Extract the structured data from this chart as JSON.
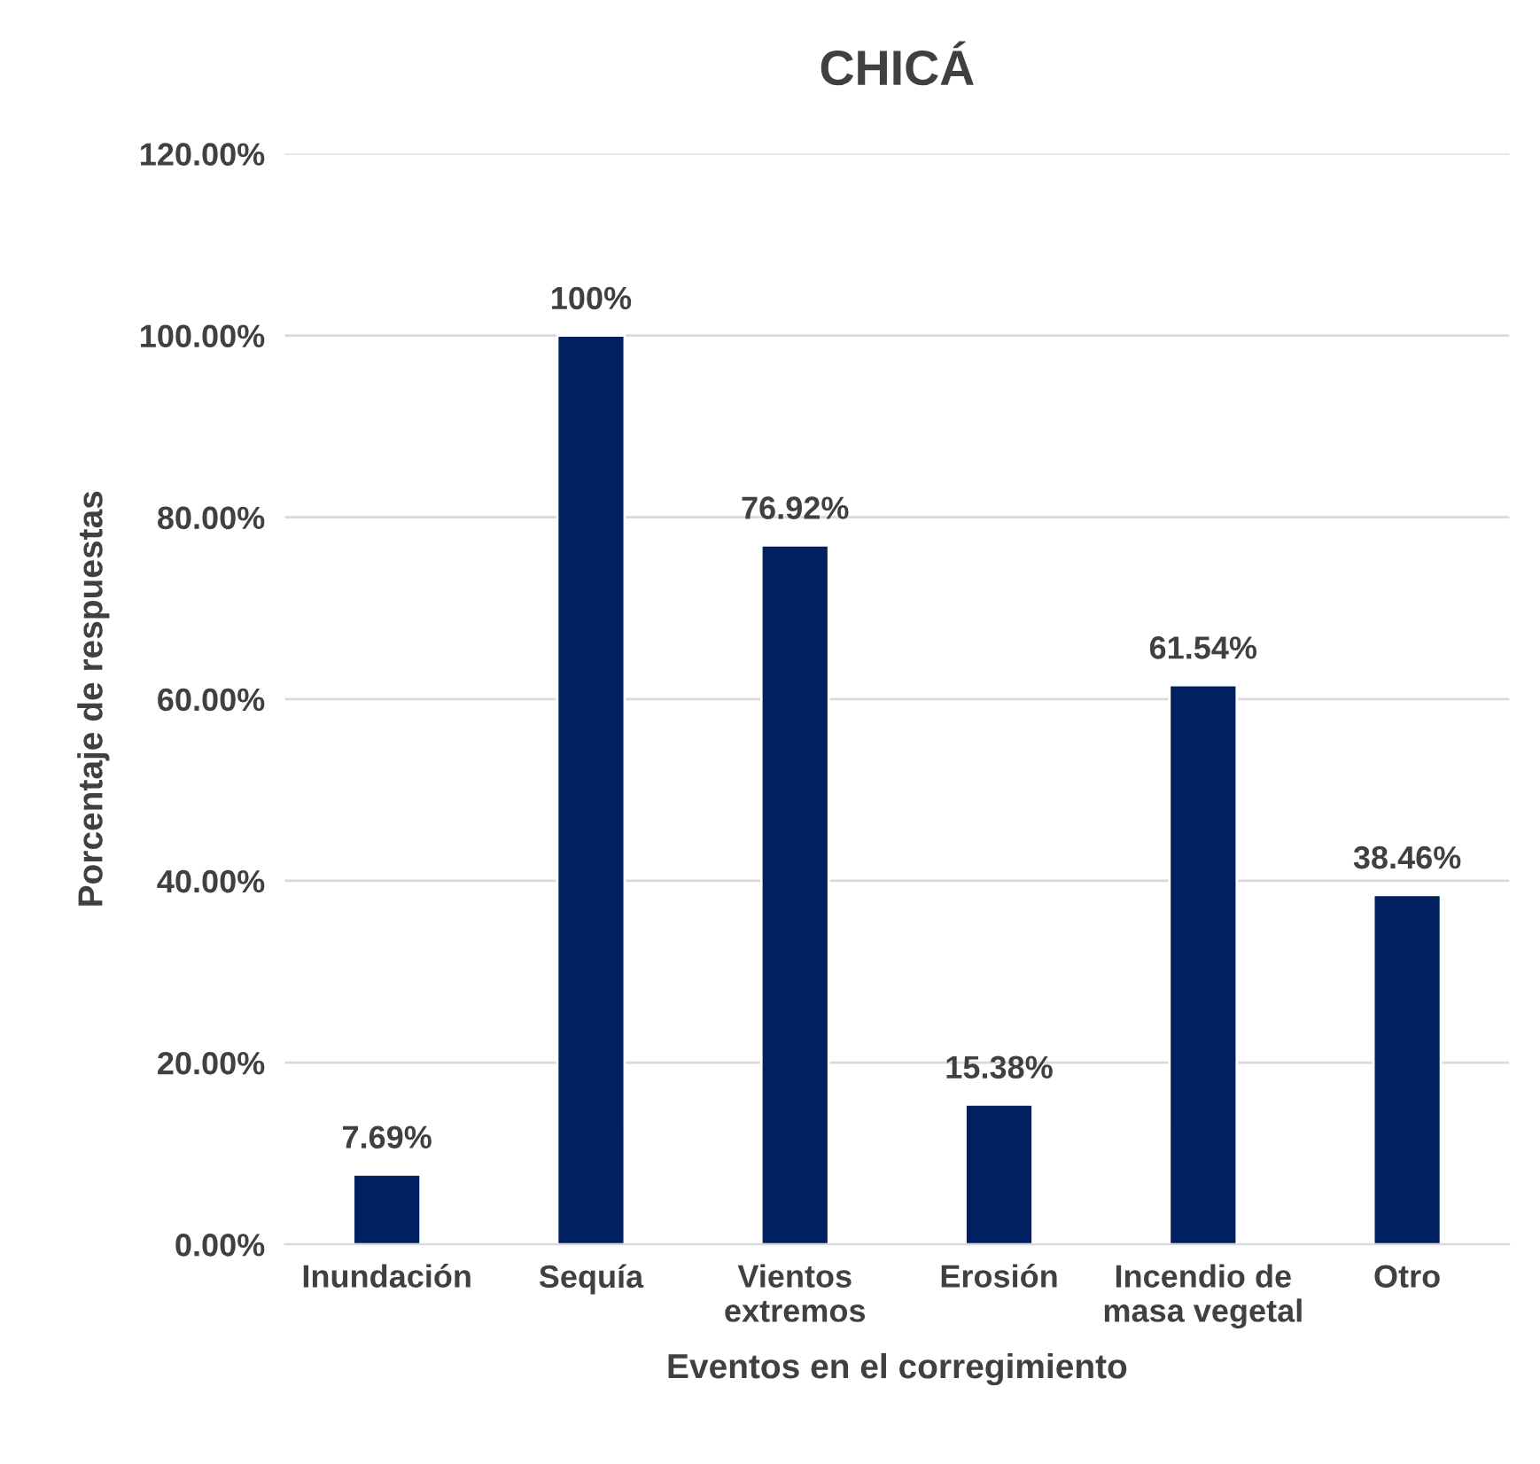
{
  "chart_data": {
    "type": "bar",
    "title": "CHICÁ",
    "xlabel": "Eventos en el corregimiento",
    "ylabel": "Porcentaje de respuestas",
    "categories": [
      "Inundación",
      "Sequía",
      "Vientos\nextremos",
      "Erosión",
      "Incendio de\nmasa vegetal",
      "Otro"
    ],
    "values": [
      7.69,
      100,
      76.92,
      15.38,
      61.54,
      38.46
    ],
    "value_labels": [
      "7.69%",
      "100%",
      "76.92%",
      "15.38%",
      "61.54%",
      "38.46%"
    ],
    "color": "#002060",
    "ylim": [
      0,
      120
    ],
    "yticks": [
      {
        "value": 0,
        "label": "0.00%"
      },
      {
        "value": 20,
        "label": "20.00%"
      },
      {
        "value": 40,
        "label": "40.00%"
      },
      {
        "value": 60,
        "label": "60.00%"
      },
      {
        "value": 80,
        "label": "80.00%"
      },
      {
        "value": 100,
        "label": "100.00%"
      },
      {
        "value": 120,
        "label": "120.00%"
      }
    ],
    "grid": "y",
    "legend": false
  }
}
